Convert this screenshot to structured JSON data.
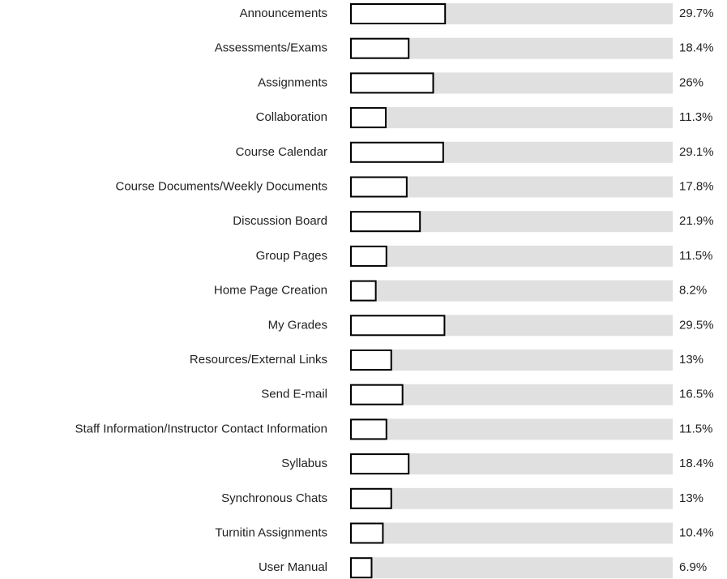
{
  "chart_data": {
    "type": "bar",
    "orientation": "horizontal",
    "categories": [
      "Announcements",
      "Assessments/Exams",
      "Assignments",
      "Collaboration",
      "Course Calendar",
      "Course Documents/Weekly Documents",
      "Discussion Board",
      "Group Pages",
      "Home Page Creation",
      "My Grades",
      "Resources/External Links",
      "Send E-mail",
      "Staff Information/Instructor Contact Information",
      "Syllabus",
      "Synchronous Chats",
      "Turnitin Assignments",
      "User Manual"
    ],
    "values": [
      29.7,
      18.4,
      26,
      11.3,
      29.1,
      17.8,
      21.9,
      11.5,
      8.2,
      29.5,
      13,
      16.5,
      11.5,
      18.4,
      13,
      10.4,
      6.9
    ],
    "value_labels": [
      "29.7%",
      "18.4%",
      "26%",
      "11.3%",
      "29.1%",
      "17.8%",
      "21.9%",
      "11.5%",
      "8.2%",
      "29.5%",
      "13%",
      "16.5%",
      "11.5%",
      "18.4%",
      "13%",
      "10.4%",
      "6.9%"
    ],
    "color": "#ffffff",
    "edge_color": "#000000",
    "track_color": "#e0e0e0",
    "xlim": [
      0,
      100
    ]
  }
}
